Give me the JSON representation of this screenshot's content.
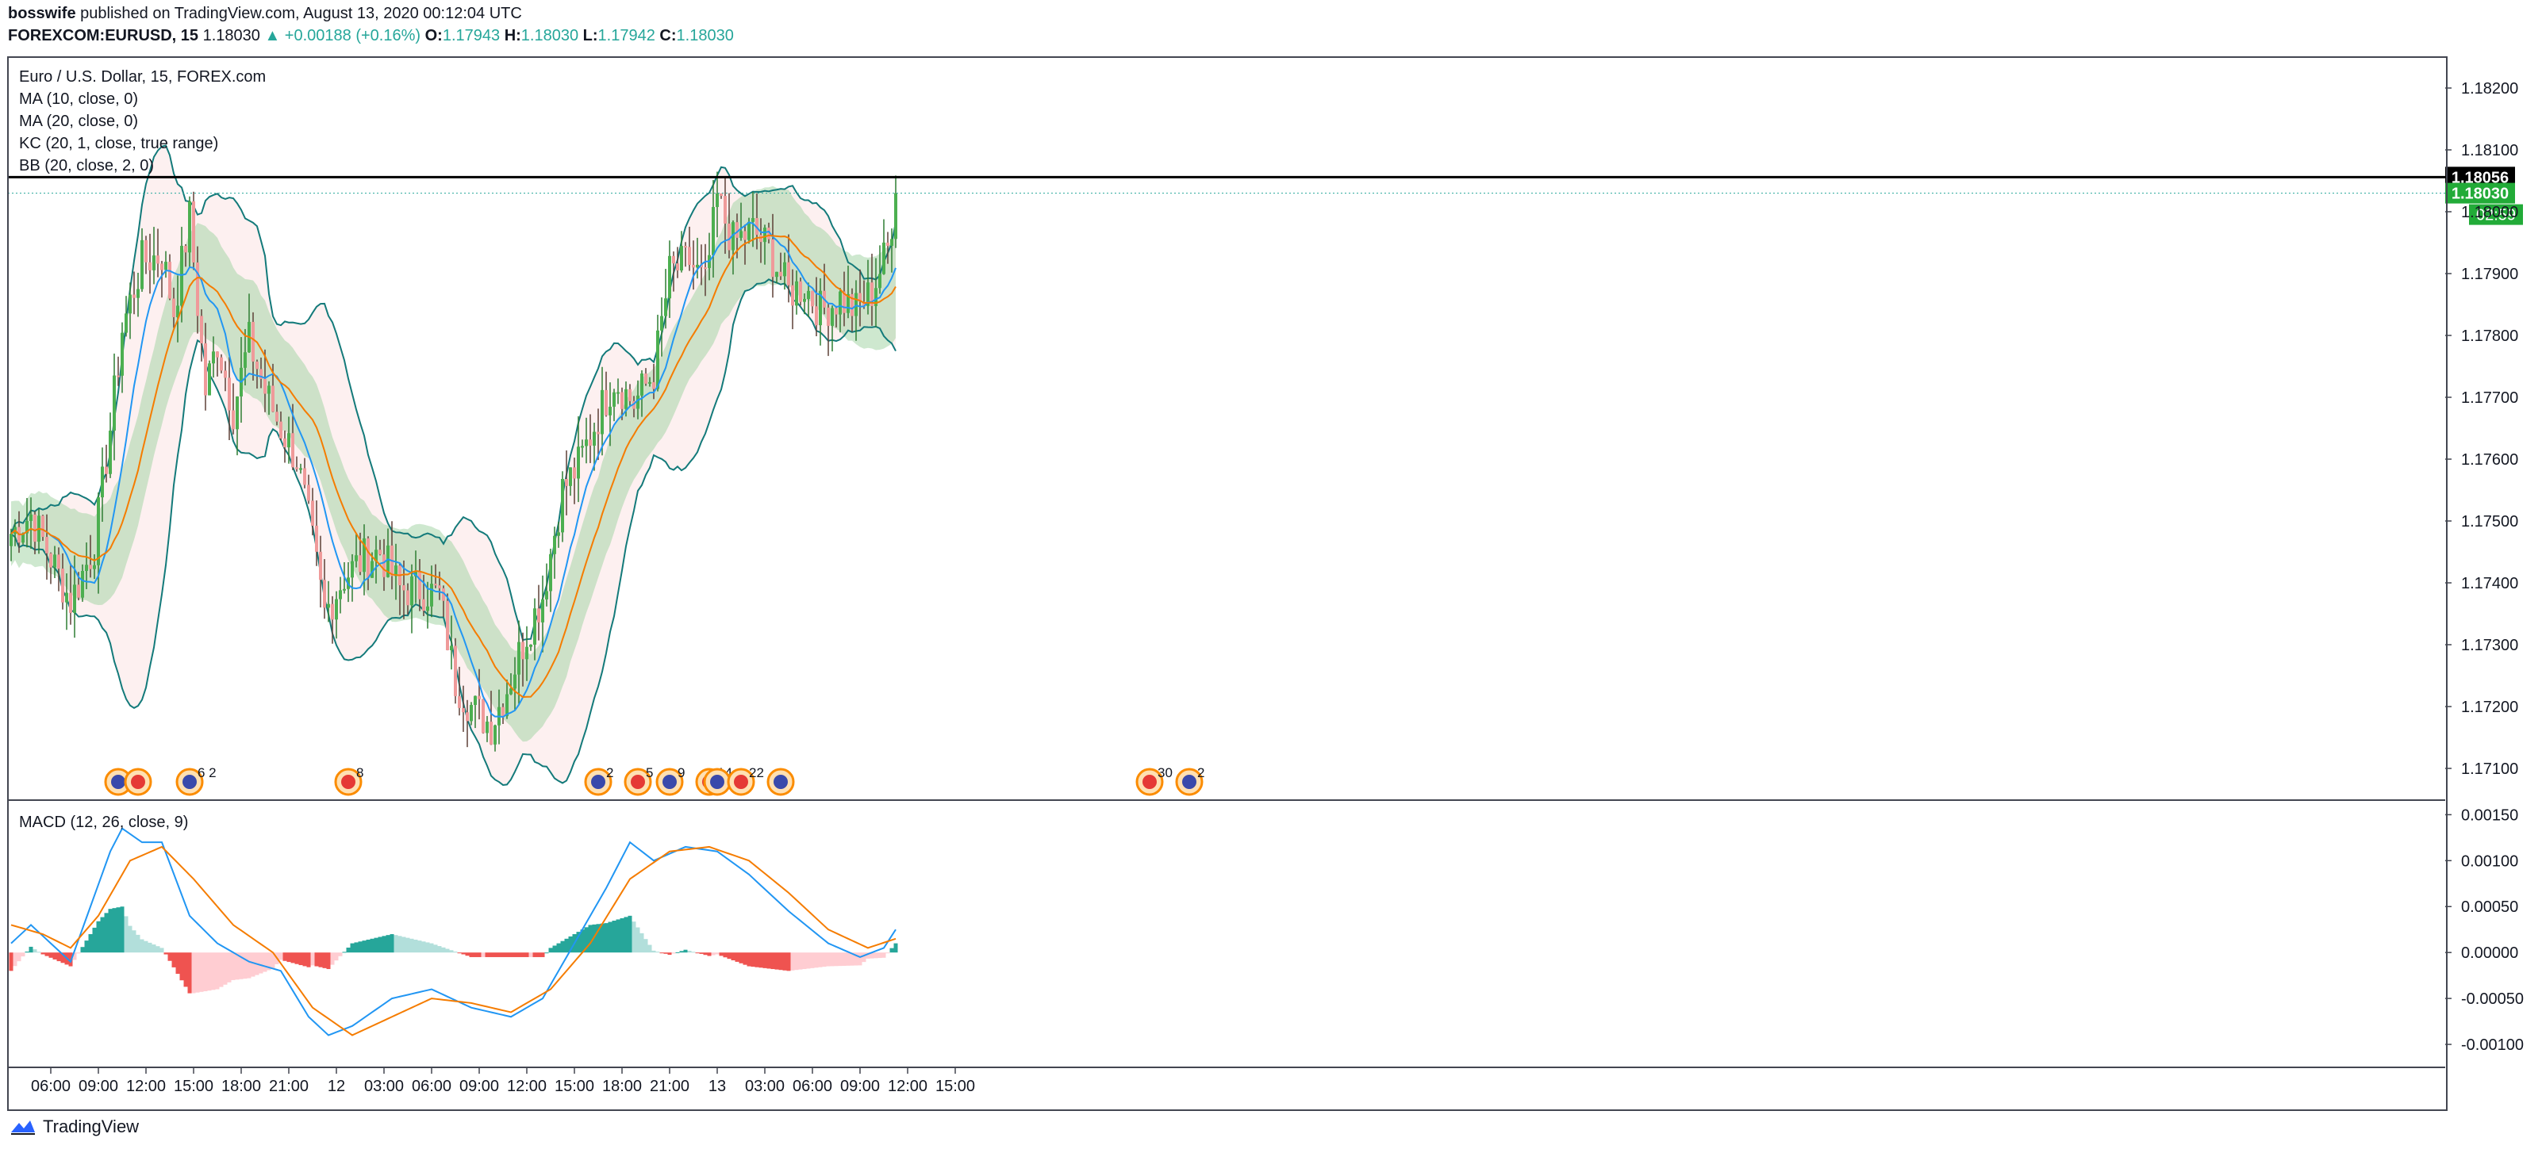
{
  "header": {
    "author": "bosswife",
    "published_text": "published on TradingView.com, August 13, 2020 00:12:04 UTC",
    "symbol": "FOREXCOM:EURUSD, 15",
    "price": "1.18030",
    "change": "▲ +0.00188 (+0.16%)",
    "o_label": "O:",
    "o_value": "1.17943",
    "h_label": "H:",
    "h_value": "1.18030",
    "l_label": "L:",
    "l_value": "1.17942",
    "c_label": "C:",
    "c_value": "1.18030"
  },
  "legend": {
    "title": "Euro / U.S. Dollar, 15, FOREX.com",
    "ma10": "MA (10, close, 0)",
    "ma20": "MA (20, close, 0)",
    "kc": "KC (20, 1, close, true range)",
    "bb": "BB (20, close, 2, 0)",
    "macd": "MACD (12, 26, close, 9)"
  },
  "footer": {
    "brand": "TradingView"
  },
  "colors": {
    "up": "#4caf50",
    "down": "#ef9a9a",
    "ma10": "#2196f3",
    "ma20": "#f57c00",
    "kc_fill": "#a5d6a7",
    "bb_fill": "#fce4e4",
    "bb_line": "#137a7a",
    "hist_up_strong": "#26a69a",
    "hist_up_weak": "#b2dfdb",
    "hist_down_strong": "#ef5350",
    "hist_down_weak": "#ffcdd2"
  },
  "chart_data": {
    "type": "candlestick",
    "price_axis": {
      "min": 1.1705,
      "max": 1.1825,
      "ticks": [
        "1.18200",
        "1.18100",
        "1.18000",
        "1.17900",
        "1.17800",
        "1.17700",
        "1.17600",
        "1.17500",
        "1.17400",
        "1.17300",
        "1.17200",
        "1.17100"
      ],
      "tick_values": [
        1.182,
        1.181,
        1.18,
        1.179,
        1.178,
        1.177,
        1.176,
        1.175,
        1.174,
        1.173,
        1.172,
        1.171
      ]
    },
    "macd_axis": {
      "min": -0.00125,
      "max": 0.00165,
      "ticks": [
        "0.00150",
        "0.00100",
        "0.00050",
        "0.00000",
        "-0.00050",
        "-0.00100"
      ],
      "tick_values": [
        0.0015,
        0.001,
        0.0005,
        0,
        -0.0005,
        -0.001
      ]
    },
    "time_axis": {
      "labels": [
        "06:00",
        "09:00",
        "12:00",
        "15:00",
        "18:00",
        "21:00",
        "12",
        "03:00",
        "06:00",
        "09:00",
        "12:00",
        "15:00",
        "18:00",
        "21:00",
        "13",
        "03:00",
        "06:00",
        "09:00",
        "12:00",
        "15:00"
      ],
      "bars_per_label": 12,
      "first_label_bar": 10
    },
    "horizontal_line": {
      "price": 1.18056,
      "label": "1.18056"
    },
    "last_price": {
      "price": 1.1803,
      "label": "1.18030",
      "countdown": "02:59"
    },
    "close_anchors": [
      [
        0,
        1.1748
      ],
      [
        5,
        1.1751
      ],
      [
        10,
        1.1744
      ],
      [
        15,
        1.1737
      ],
      [
        21,
        1.1746
      ],
      [
        25,
        1.1765
      ],
      [
        28,
        1.1781
      ],
      [
        33,
        1.1792
      ],
      [
        38,
        1.1793
      ],
      [
        41,
        1.1784
      ],
      [
        45,
        1.1799
      ],
      [
        49,
        1.1771
      ],
      [
        52,
        1.1779
      ],
      [
        56,
        1.1768
      ],
      [
        60,
        1.1779
      ],
      [
        64,
        1.1771
      ],
      [
        68,
        1.1765
      ],
      [
        72,
        1.176
      ],
      [
        75,
        1.175
      ],
      [
        79,
        1.1735
      ],
      [
        84,
        1.1741
      ],
      [
        89,
        1.1744
      ],
      [
        93,
        1.1745
      ],
      [
        98,
        1.1739
      ],
      [
        103,
        1.1739
      ],
      [
        108,
        1.1738
      ],
      [
        112,
        1.1724
      ],
      [
        116,
        1.172
      ],
      [
        121,
        1.1717
      ],
      [
        125,
        1.1723
      ],
      [
        130,
        1.1732
      ],
      [
        134,
        1.1738
      ],
      [
        139,
        1.1755
      ],
      [
        143,
        1.1759
      ],
      [
        148,
        1.1767
      ],
      [
        152,
        1.1773
      ],
      [
        157,
        1.1769
      ],
      [
        162,
        1.1774
      ],
      [
        166,
        1.179
      ],
      [
        171,
        1.1792
      ],
      [
        175,
        1.1788
      ],
      [
        178,
        1.1802
      ],
      [
        182,
        1.1795
      ],
      [
        187,
        1.1797
      ],
      [
        191,
        1.1794
      ],
      [
        196,
        1.1787
      ],
      [
        200,
        1.1788
      ],
      [
        204,
        1.1784
      ],
      [
        209,
        1.1786
      ],
      [
        213,
        1.1784
      ],
      [
        217,
        1.1787
      ],
      [
        221,
        1.1794
      ],
      [
        223,
        1.1803
      ]
    ],
    "macd_anchors": [
      [
        0,
        0.0001
      ],
      [
        5,
        0.0003
      ],
      [
        10,
        0.0001
      ],
      [
        15,
        -0.0001
      ],
      [
        20,
        0.0005
      ],
      [
        25,
        0.0011
      ],
      [
        28,
        0.00135
      ],
      [
        33,
        0.0012
      ],
      [
        38,
        0.0012
      ],
      [
        45,
        0.0004
      ],
      [
        52,
        0.0001
      ],
      [
        60,
        -0.0001
      ],
      [
        68,
        -0.0002
      ],
      [
        75,
        -0.0007
      ],
      [
        80,
        -0.0009
      ],
      [
        86,
        -0.0008
      ],
      [
        96,
        -0.0005
      ],
      [
        106,
        -0.0004
      ],
      [
        116,
        -0.0006
      ],
      [
        126,
        -0.0007
      ],
      [
        134,
        -0.0005
      ],
      [
        142,
        0.0001
      ],
      [
        150,
        0.0007
      ],
      [
        156,
        0.0012
      ],
      [
        162,
        0.001
      ],
      [
        170,
        0.00115
      ],
      [
        178,
        0.0011
      ],
      [
        186,
        0.00085
      ],
      [
        196,
        0.00045
      ],
      [
        206,
        0.0001
      ],
      [
        214,
        -5e-05
      ],
      [
        220,
        5e-05
      ],
      [
        223,
        0.00025
      ]
    ],
    "signal_anchors": [
      [
        0,
        0.0003
      ],
      [
        8,
        0.0002
      ],
      [
        15,
        5e-05
      ],
      [
        22,
        0.0004
      ],
      [
        30,
        0.001
      ],
      [
        38,
        0.00115
      ],
      [
        46,
        0.0008
      ],
      [
        56,
        0.0003
      ],
      [
        66,
        0.0
      ],
      [
        76,
        -0.0006
      ],
      [
        86,
        -0.0009
      ],
      [
        96,
        -0.0007
      ],
      [
        106,
        -0.0005
      ],
      [
        116,
        -0.00055
      ],
      [
        126,
        -0.00065
      ],
      [
        136,
        -0.0004
      ],
      [
        146,
        0.0001
      ],
      [
        156,
        0.0008
      ],
      [
        166,
        0.0011
      ],
      [
        176,
        0.00115
      ],
      [
        186,
        0.001
      ],
      [
        196,
        0.00065
      ],
      [
        206,
        0.00025
      ],
      [
        216,
        5e-05
      ],
      [
        223,
        0.00015
      ]
    ],
    "events": [
      {
        "bar": 27,
        "label": ""
      },
      {
        "bar": 32,
        "label": ""
      },
      {
        "bar": 45,
        "label": "6 2"
      },
      {
        "bar": 85,
        "label": "8"
      },
      {
        "bar": 148,
        "label": "2"
      },
      {
        "bar": 158,
        "label": "5"
      },
      {
        "bar": 166,
        "label": "9"
      },
      {
        "bar": 176,
        "label": "14"
      },
      {
        "bar": 178,
        "label": ""
      },
      {
        "bar": 184,
        "label": "22"
      },
      {
        "bar": 194,
        "label": ""
      },
      {
        "bar": 287,
        "label": "30"
      },
      {
        "bar": 297,
        "label": "2"
      }
    ]
  }
}
